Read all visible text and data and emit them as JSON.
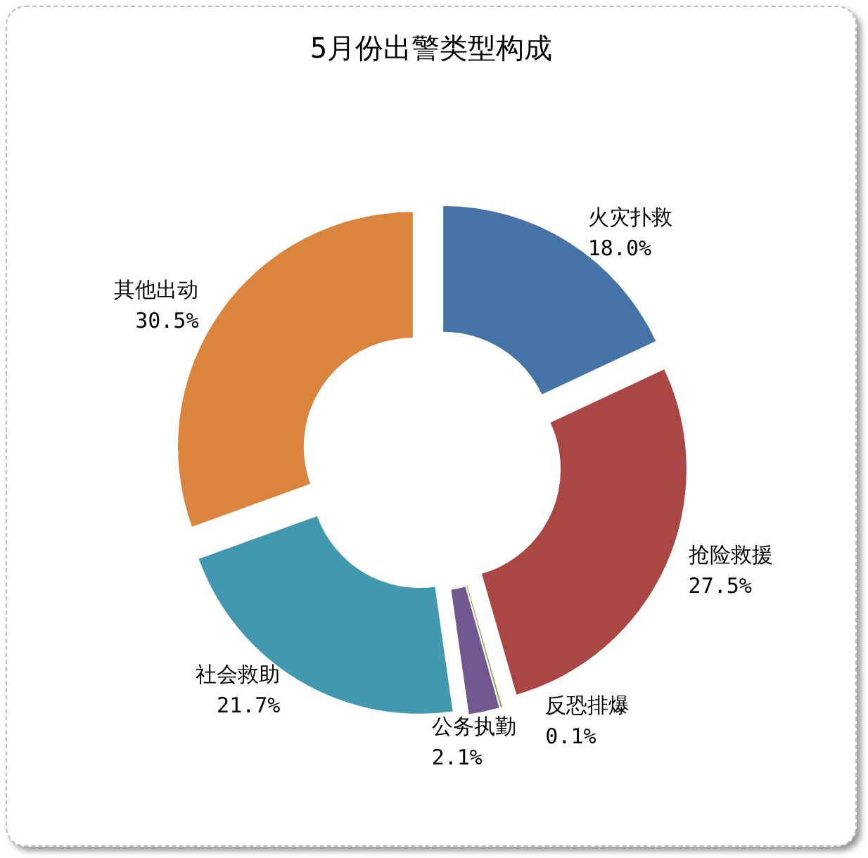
{
  "chart_data": {
    "type": "donut",
    "title": "5月份出警类型构成",
    "categories": [
      "火灾扑救",
      "抢险救援",
      "反恐排爆",
      "公务执勤",
      "社会救助",
      "其他出动"
    ],
    "values": [
      18.0,
      27.5,
      0.1,
      2.1,
      21.7,
      30.5
    ],
    "colors": [
      "#4572a7",
      "#aa4643",
      "#89a54e",
      "#71588f",
      "#4198af",
      "#db843d"
    ],
    "value_labels": [
      "18.0%",
      "27.5%",
      "0.1%",
      "2.1%",
      "21.7%",
      "30.5%"
    ],
    "legend": false
  }
}
